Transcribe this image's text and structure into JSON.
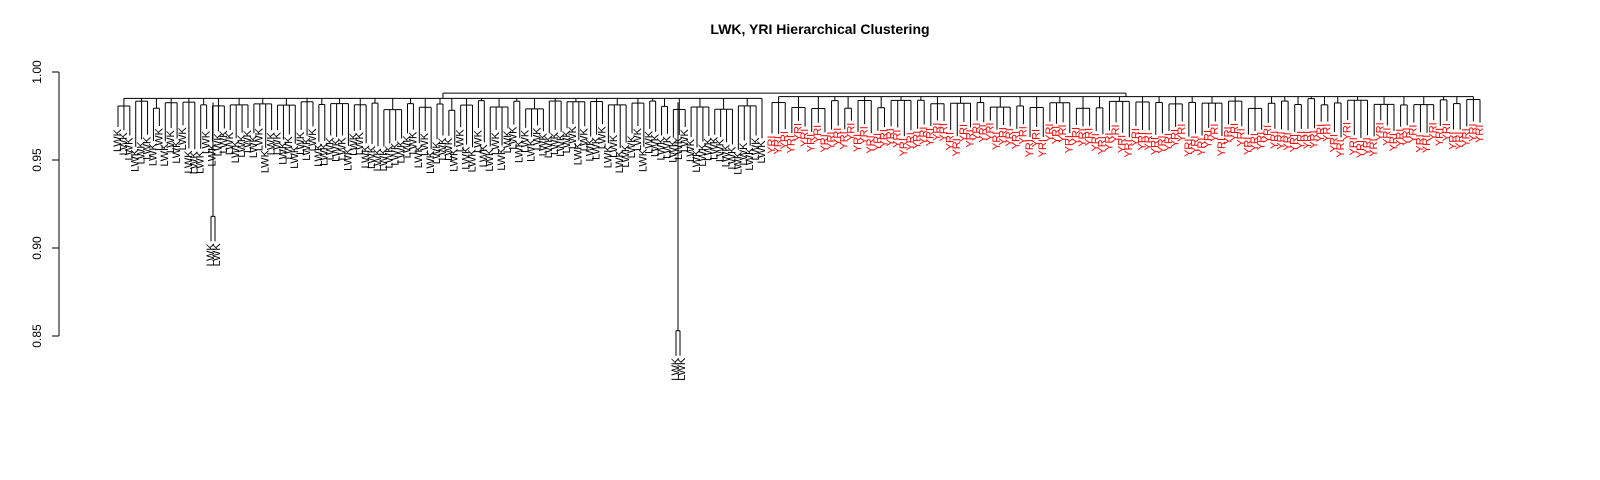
{
  "chart_data": {
    "type": "dendrogram",
    "title": "LWK, YRI Hierarchical Clustering",
    "xlabel": "",
    "ylabel": "",
    "ylim": [
      0.82,
      1.0
    ],
    "y_ticks": [
      {
        "value": 1.0,
        "label": "1.00"
      },
      {
        "value": 0.95,
        "label": "0.95"
      },
      {
        "value": 0.9,
        "label": "0.90"
      },
      {
        "value": 0.85,
        "label": "0.85"
      }
    ],
    "root_height": 0.988,
    "groups": [
      {
        "name": "LWK",
        "label": "LWK",
        "color": "#000000",
        "leaf_count": 110,
        "merge_height": 0.985
      },
      {
        "name": "YRI",
        "label": "YRI",
        "color": "#ff0000",
        "leaf_count": 108,
        "merge_height": 0.986
      }
    ],
    "outlier_leaves": [
      {
        "group": "LWK",
        "label": "LWK",
        "pair_height": 0.918
      },
      {
        "group": "LWK",
        "label": "LWK",
        "pair_height": 0.853
      }
    ]
  }
}
